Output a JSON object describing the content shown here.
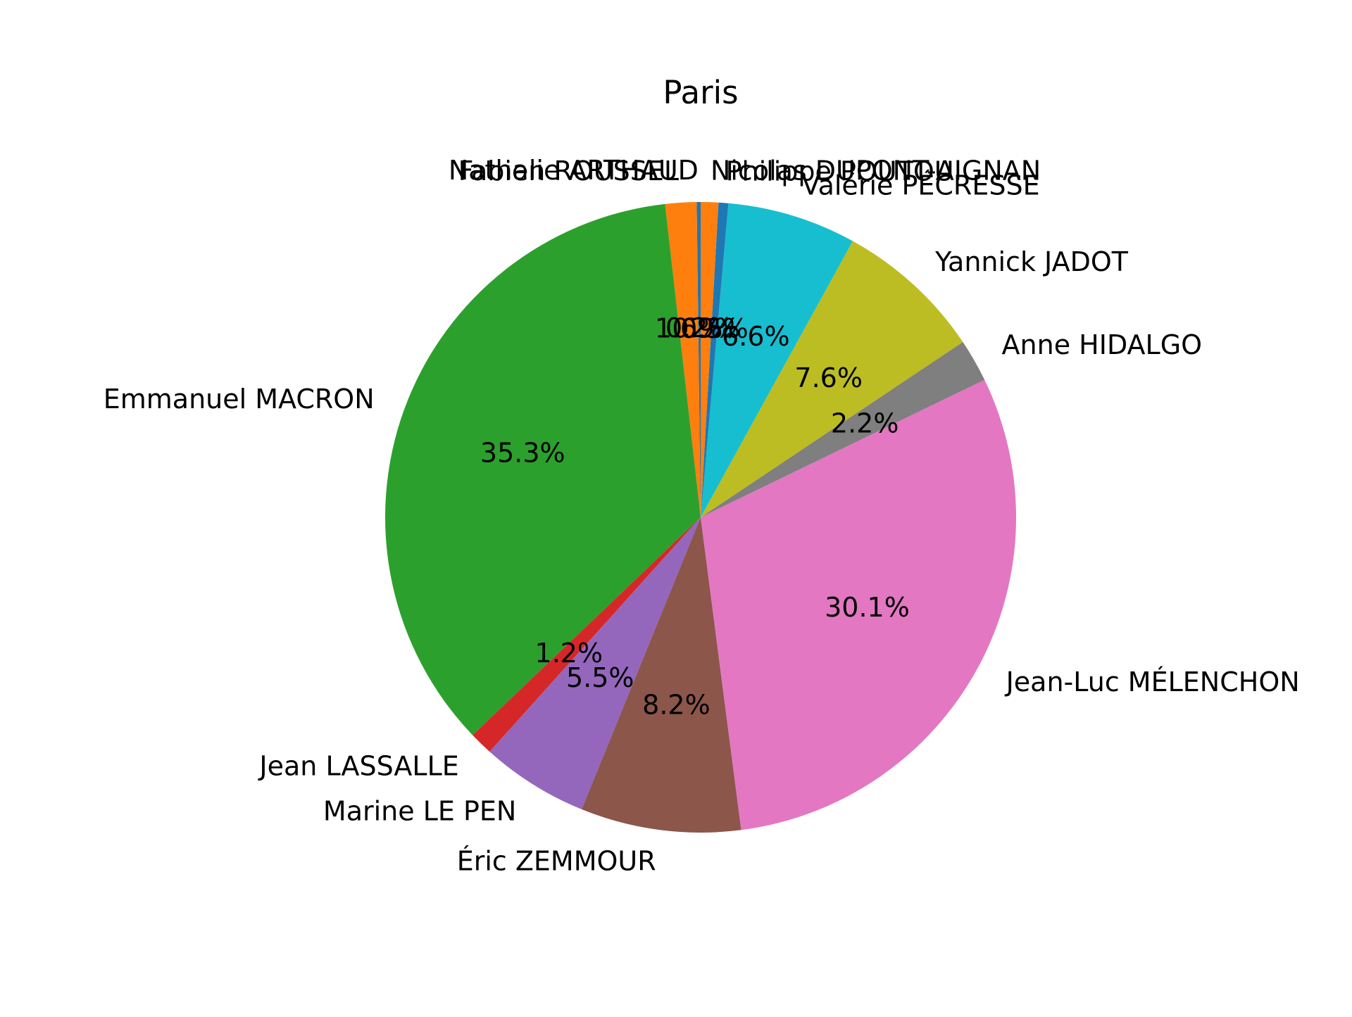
{
  "chart_data": {
    "type": "pie",
    "title": "Paris",
    "slices": [
      {
        "label": "Nathalie ARTHAUD",
        "value": 0.2,
        "pct_label": "0.2%",
        "color": "#1f77b4"
      },
      {
        "label": "Fabien ROUSSEL",
        "value": 1.6,
        "pct_label": "1.6%",
        "color": "#ff7f0e"
      },
      {
        "label": "Emmanuel MACRON",
        "value": 35.3,
        "pct_label": "35.3%",
        "color": "#2ca02c"
      },
      {
        "label": "Jean LASSALLE",
        "value": 1.2,
        "pct_label": "1.2%",
        "color": "#d62728"
      },
      {
        "label": "Marine LE PEN",
        "value": 5.5,
        "pct_label": "5.5%",
        "color": "#9467bd"
      },
      {
        "label": "Éric ZEMMOUR",
        "value": 8.2,
        "pct_label": "8.2%",
        "color": "#8c564b"
      },
      {
        "label": "Jean-Luc MÉLENCHON",
        "value": 30.1,
        "pct_label": "30.1%",
        "color": "#e377c2"
      },
      {
        "label": "Anne HIDALGO",
        "value": 2.2,
        "pct_label": "2.2%",
        "color": "#7f7f7f"
      },
      {
        "label": "Yannick JADOT",
        "value": 7.6,
        "pct_label": "7.6%",
        "color": "#bcbd22"
      },
      {
        "label": "Valérie PÉCRESSE",
        "value": 6.6,
        "pct_label": "6.6%",
        "color": "#17becf"
      },
      {
        "label": "Philippe POUTOU",
        "value": 0.5,
        "pct_label": "0.5%",
        "color": "#1f77b4"
      },
      {
        "label": "Nicolas DUPONT-AIGNAN",
        "value": 0.9,
        "pct_label": "0.9%",
        "color": "#ff7f0e"
      }
    ]
  }
}
